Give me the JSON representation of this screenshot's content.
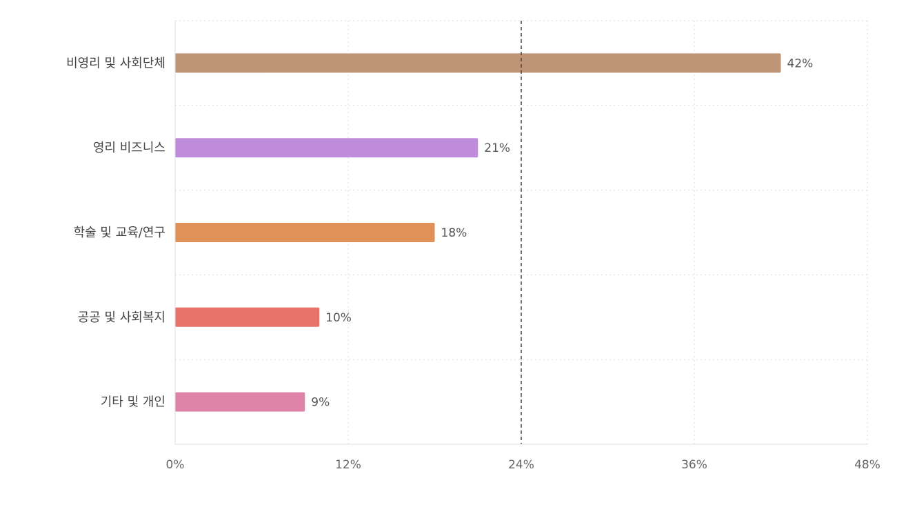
{
  "chart_data": {
    "type": "bar",
    "orientation": "horizontal",
    "categories": [
      "비영리 및 사회단체",
      "영리 비즈니스",
      "학술 및 교육/연구",
      "공공 및 사회복지",
      "기타 및 개인"
    ],
    "values": [
      42,
      21,
      18,
      10,
      9
    ],
    "value_labels": [
      "42%",
      "21%",
      "18%",
      "10%",
      "9%"
    ],
    "colors": [
      "#bf9577",
      "#bf8cdc",
      "#e09158",
      "#e87469",
      "#e083a9"
    ],
    "xlim": [
      0,
      48
    ],
    "x_ticks": [
      0,
      12,
      24,
      36,
      48
    ],
    "x_tick_labels": [
      "0%",
      "12%",
      "24%",
      "36%",
      "48%"
    ],
    "reference_line": 24,
    "reference_line_style": "dashed",
    "grid": true,
    "title": "",
    "xlabel": "",
    "ylabel": ""
  }
}
